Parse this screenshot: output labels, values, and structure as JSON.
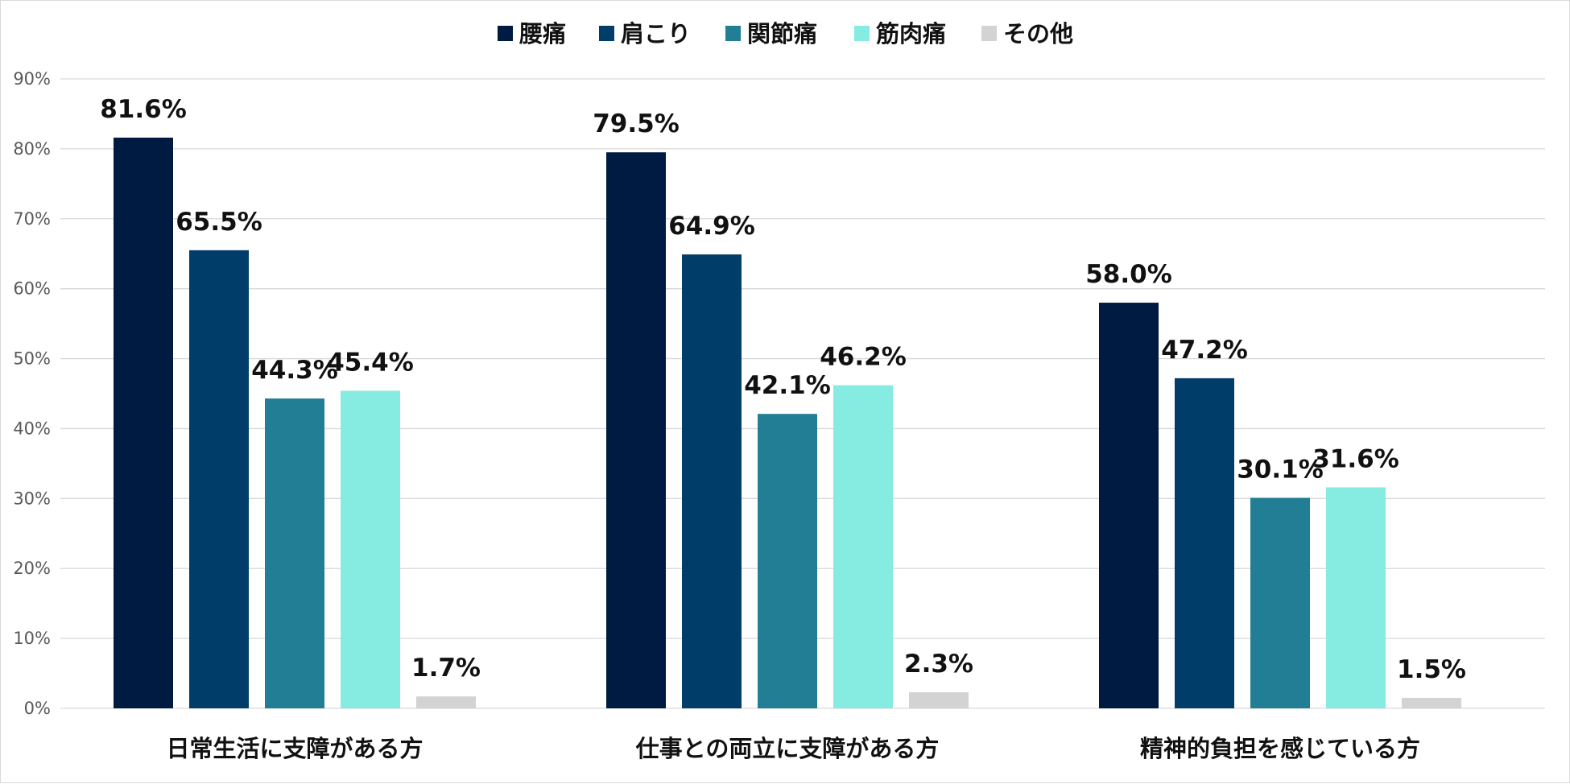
{
  "chart_data": {
    "type": "bar",
    "title": "",
    "xlabel": "",
    "ylabel": "",
    "ylim": [
      0,
      90
    ],
    "y_ticks": [
      0,
      10,
      20,
      30,
      40,
      50,
      60,
      70,
      80,
      90
    ],
    "y_tick_suffix": "%",
    "grid": true,
    "legend_position": "top",
    "categories": [
      "日常生活に支障がある方",
      "仕事との両立に支障がある方",
      "精神的負担を感じている方"
    ],
    "series": [
      {
        "name": "腰痛",
        "color": "#001b42",
        "values": [
          81.6,
          79.5,
          58.0
        ],
        "labels": [
          "81.6%",
          "79.5%",
          "58.0%"
        ]
      },
      {
        "name": "肩こり",
        "color": "#003e69",
        "values": [
          65.5,
          64.9,
          47.2
        ],
        "labels": [
          "65.5%",
          "64.9%",
          "47.2%"
        ]
      },
      {
        "name": "関節痛",
        "color": "#217e94",
        "values": [
          44.3,
          42.1,
          30.1
        ],
        "labels": [
          "44.3%",
          "42.1%",
          "30.1%"
        ]
      },
      {
        "name": "筋肉痛",
        "color": "#86ebe0",
        "values": [
          45.4,
          46.2,
          31.6
        ],
        "labels": [
          "45.4%",
          "46.2%",
          "31.6%"
        ]
      },
      {
        "name": "その他",
        "color": "#d3d3d3",
        "values": [
          1.7,
          2.3,
          1.5
        ],
        "labels": [
          "1.7%",
          "2.3%",
          "1.5%"
        ]
      }
    ]
  }
}
